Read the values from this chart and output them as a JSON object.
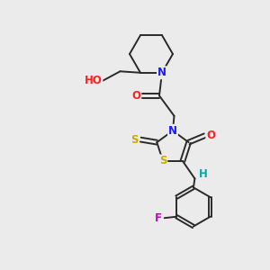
{
  "background_color": "#ebebeb",
  "bond_color": "#2a2a2a",
  "atom_colors": {
    "N": "#1a1aff",
    "O": "#ff2020",
    "S": "#ccaa00",
    "F": "#cc00cc",
    "H": "#00aaaa",
    "C": "#2a2a2a"
  },
  "font_size": 8.5,
  "figsize": [
    3.0,
    3.0
  ],
  "dpi": 100
}
